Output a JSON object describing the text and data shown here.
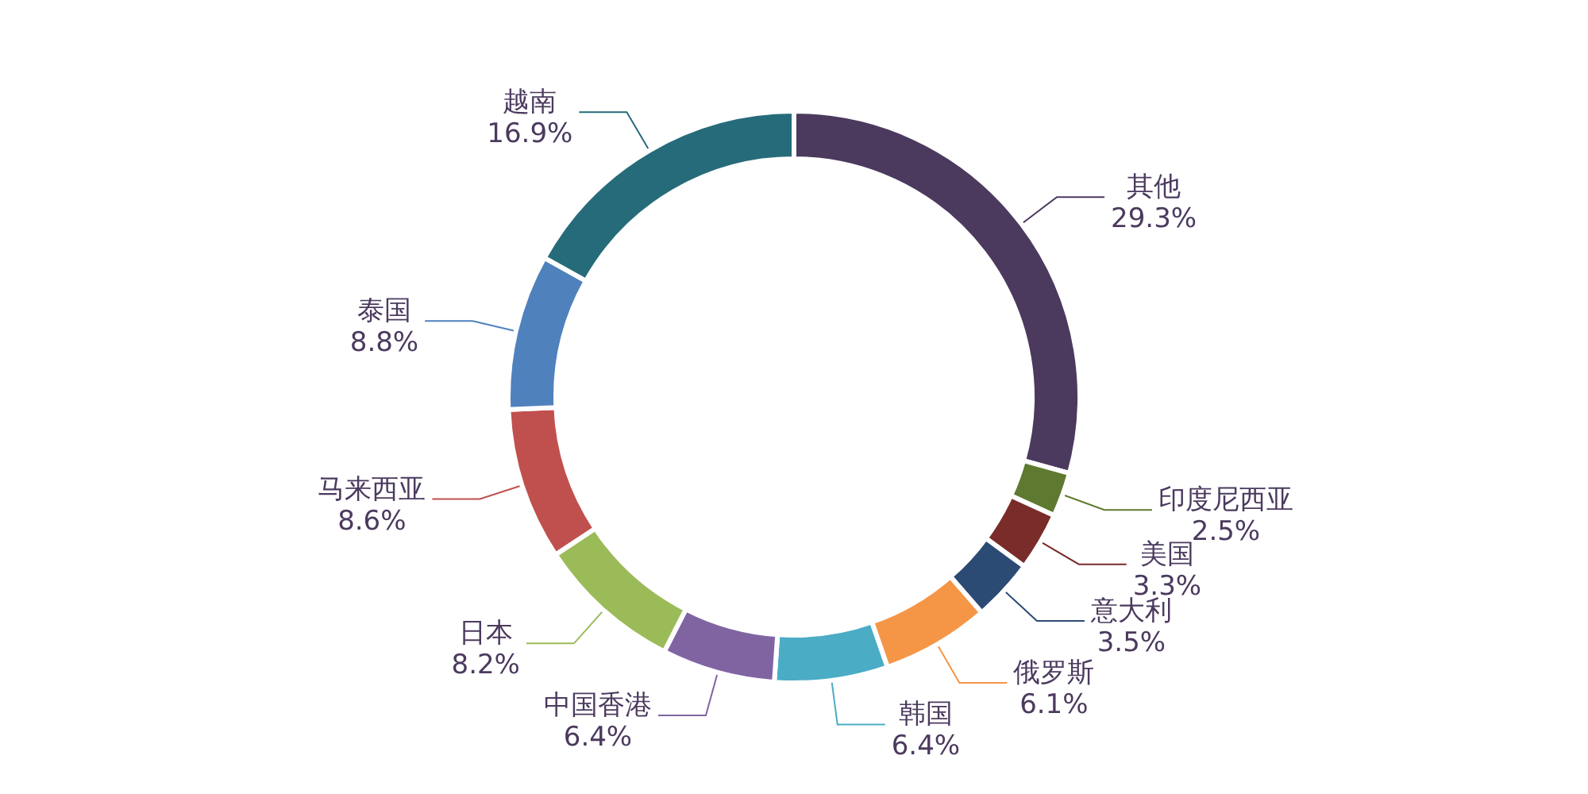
{
  "chart_data": {
    "type": "donut",
    "categories": [
      "其他",
      "印度尼西亚",
      "美国",
      "意大利",
      "俄罗斯",
      "韩国",
      "中国香港",
      "日本",
      "马来西亚",
      "泰国",
      "越南"
    ],
    "values": [
      29.3,
      2.5,
      3.3,
      3.5,
      6.1,
      6.4,
      6.4,
      8.2,
      8.6,
      8.8,
      16.9
    ],
    "colors": [
      "#4b3a5e",
      "#5e7a31",
      "#7a2c2a",
      "#2b4a74",
      "#f59647",
      "#4bacc6",
      "#8064a2",
      "#9bbb59",
      "#c0504d",
      "#4f81bd",
      "#266b7a"
    ],
    "value_labels": [
      "29.3%",
      "2.5%",
      "3.3%",
      "3.5%",
      "6.1%",
      "6.4%",
      "6.4%",
      "8.2%",
      "8.6%",
      "8.8%",
      "16.9%"
    ]
  }
}
